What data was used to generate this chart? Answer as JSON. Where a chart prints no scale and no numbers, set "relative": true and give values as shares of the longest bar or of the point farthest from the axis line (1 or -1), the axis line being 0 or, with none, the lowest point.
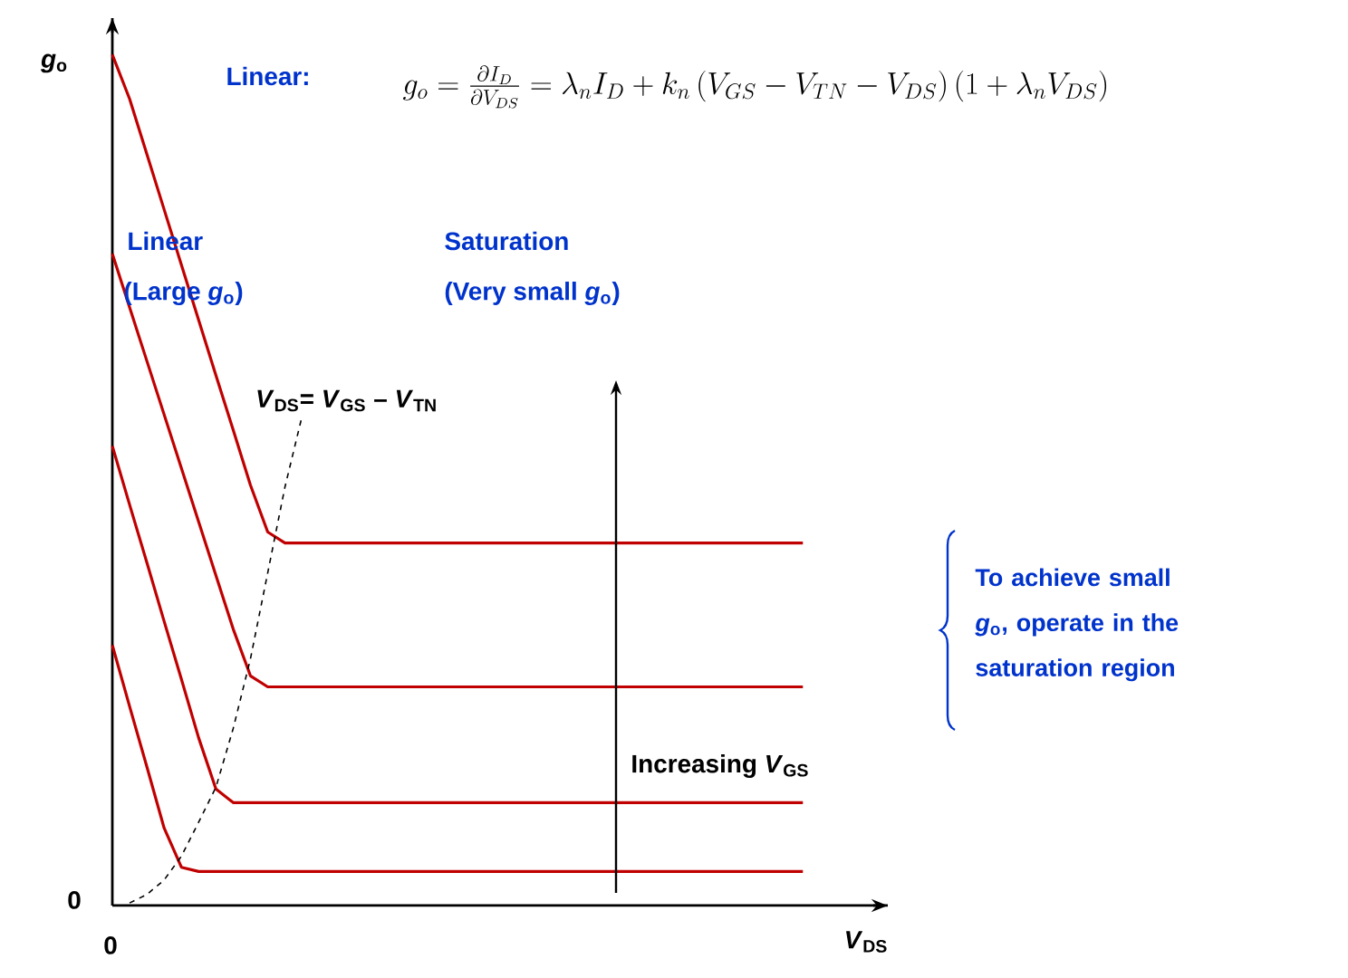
{
  "chart_data": {
    "type": "line",
    "relative": true,
    "xlabel": "*V*$_{DS}$",
    "ylabel": "*g*$_{o}$",
    "categories": [
      null,
      null,
      null,
      null,
      null,
      null,
      null,
      null,
      null,
      null,
      null,
      null,
      null,
      null,
      null,
      null,
      null,
      null,
      null,
      null,
      null,
      null,
      null,
      null,
      null,
      null,
      null,
      null,
      null,
      null,
      null,
      null,
      null,
      null,
      null,
      null,
      null,
      null,
      null,
      null,
      null
    ],
    "series": [
      {
        "color": "#c00000",
        "values": [
          1.0,
          0.948,
          0.883,
          0.818,
          0.753,
          0.688,
          0.623,
          0.559,
          0.494,
          0.439,
          0.426,
          0.426,
          0.426,
          0.426,
          0.426,
          0.426,
          0.426,
          0.426,
          0.426,
          0.426,
          0.426,
          0.426,
          0.426,
          0.426,
          0.426,
          0.426,
          0.426,
          0.426,
          0.426,
          0.426,
          0.426,
          0.426,
          0.426,
          0.426,
          0.426,
          0.426,
          0.426,
          0.426,
          0.426,
          0.426,
          0.426
        ]
      },
      {
        "color": "#c00000",
        "values": [
          0.766,
          0.703,
          0.64,
          0.577,
          0.514,
          0.451,
          0.388,
          0.325,
          0.27,
          0.257,
          0.257,
          0.257,
          0.257,
          0.257,
          0.257,
          0.257,
          0.257,
          0.257,
          0.257,
          0.257,
          0.257,
          0.257,
          0.257,
          0.257,
          0.257,
          0.257,
          0.257,
          0.257,
          0.257,
          0.257,
          0.257,
          0.257,
          0.257,
          0.257,
          0.257,
          0.257,
          0.257,
          0.257,
          0.257,
          0.257,
          0.257
        ]
      },
      {
        "color": "#c00000",
        "values": [
          0.54,
          0.471,
          0.403,
          0.334,
          0.266,
          0.197,
          0.137,
          0.121,
          0.121,
          0.121,
          0.121,
          0.121,
          0.121,
          0.121,
          0.121,
          0.121,
          0.121,
          0.121,
          0.121,
          0.121,
          0.121,
          0.121,
          0.121,
          0.121,
          0.121,
          0.121,
          0.121,
          0.121,
          0.121,
          0.121,
          0.121,
          0.121,
          0.121,
          0.121,
          0.121,
          0.121,
          0.121,
          0.121,
          0.121,
          0.121,
          0.121
        ]
      },
      {
        "color": "#c00000",
        "values": [
          0.306,
          0.234,
          0.163,
          0.091,
          0.045,
          0.04,
          0.04,
          0.04,
          0.04,
          0.04,
          0.04,
          0.04,
          0.04,
          0.04,
          0.04,
          0.04,
          0.04,
          0.04,
          0.04,
          0.04,
          0.04,
          0.04,
          0.04,
          0.04,
          0.04,
          0.04,
          0.04,
          0.04,
          0.04,
          0.04,
          0.04,
          0.04,
          0.04,
          0.04,
          0.04,
          0.04,
          0.04,
          0.04,
          0.04,
          0.04,
          0.04
        ]
      },
      {
        "name": "*V*$_{DS}$= *V*$_{GS}$ – *V*$_{TN}$",
        "color": "#000000",
        "line_style": "dashed",
        "values": [
          null,
          0.003,
          0.013,
          0.03,
          0.058,
          0.098,
          0.139,
          0.208,
          0.29,
          0.391,
          0.492,
          0.576,
          null,
          null,
          null,
          null,
          null,
          null,
          null,
          null,
          null,
          null,
          null,
          null,
          null,
          null,
          null,
          null,
          null,
          null,
          null,
          null,
          null,
          null,
          null,
          null,
          null,
          null,
          null,
          null,
          null
        ]
      }
    ],
    "annotations": [
      "Linear:",
      "g_o = \\frac{\\partial I_D}{\\partial V_{DS}} = \\lambda_n I_D + k_n\\left(V_{GS} - V_{TN} - V_{DS}\\right)\\left(1+\\lambda_n V_{DS}\\right)",
      "Linear",
      "(Large *g*$_{o}$)",
      "Saturation",
      "(Very small *g*$_{o}$)",
      "Increasing *V*$_{GS}$",
      "To achieve small *g*$_{o}$, operate in the saturation region",
      "0",
      "0"
    ]
  }
}
